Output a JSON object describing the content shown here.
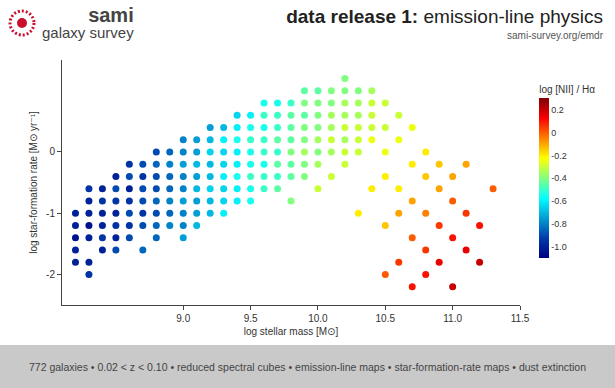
{
  "header": {
    "logo": [
      "sami",
      "galaxy survey"
    ],
    "title": "data release 1: emission-line physics",
    "url": "sami-survey.org/emdr"
  },
  "footer": "772 galaxies • 0.02 < z < 0.10 • reduced spectral cubes • emission-line maps • star-formation-rate maps • dust extinction",
  "chart_data": {
    "type": "scatter",
    "xlabel": "log stellar mass [M⊙]",
    "ylabel": "log star-formation rate [M⊙ yr⁻¹]",
    "grid": false,
    "marker": "circle",
    "xlim": [
      8.1,
      11.5
    ],
    "xticks": [
      {
        "value": 9,
        "label": "9.0"
      },
      9.5,
      {
        "value": 10,
        "label": "10.0"
      },
      10.5,
      {
        "value": 11,
        "label": "11.0"
      },
      11.5
    ],
    "ylim": [
      -2.5,
      1.5
    ],
    "yticks": [
      -2,
      -1,
      0
    ],
    "colorbar_title": "log [NII] / Hα",
    "clim": [
      -1.1,
      0.3
    ],
    "cticks": [
      0.2,
      0,
      -0.2,
      -0.4,
      -0.6,
      -0.8,
      {
        "value": -1,
        "label": "-1.0"
      }
    ],
    "x": [
      8.2,
      8.2,
      8.2,
      8.2,
      8.2,
      8.3,
      8.3,
      8.3,
      8.3,
      8.3,
      8.3,
      8.3,
      8.4,
      8.4,
      8.4,
      8.4,
      8.4,
      8.4,
      8.5,
      8.5,
      8.5,
      8.5,
      8.5,
      8.5,
      8.5,
      8.6,
      8.6,
      8.6,
      8.6,
      8.6,
      8.6,
      8.6,
      8.7,
      8.7,
      8.7,
      8.7,
      8.7,
      8.7,
      8.7,
      8.8,
      8.8,
      8.8,
      8.8,
      8.8,
      8.8,
      8.8,
      8.8,
      8.9,
      8.9,
      8.9,
      8.9,
      8.9,
      8.9,
      8.9,
      9,
      9,
      9,
      9,
      9,
      9,
      9,
      9,
      9,
      9.1,
      9.1,
      9.1,
      9.1,
      9.1,
      9.1,
      9.1,
      9.1,
      9.2,
      9.2,
      9.2,
      9.2,
      9.2,
      9.2,
      9.2,
      9.2,
      9.3,
      9.3,
      9.3,
      9.3,
      9.3,
      9.3,
      9.3,
      9.3,
      9.4,
      9.4,
      9.4,
      9.4,
      9.4,
      9.4,
      9.4,
      9.4,
      9.5,
      9.5,
      9.5,
      9.5,
      9.5,
      9.5,
      9.5,
      9.5,
      9.6,
      9.6,
      9.6,
      9.6,
      9.6,
      9.6,
      9.6,
      9.6,
      9.7,
      9.7,
      9.7,
      9.7,
      9.7,
      9.7,
      9.7,
      9.7,
      9.8,
      9.8,
      9.8,
      9.8,
      9.8,
      9.8,
      9.8,
      9.8,
      9.9,
      9.9,
      9.9,
      9.9,
      9.9,
      9.9,
      9.9,
      9.9,
      10,
      10,
      10,
      10,
      10,
      10,
      10,
      10,
      10.1,
      10.1,
      10.1,
      10.1,
      10.1,
      10.1,
      10.1,
      10.2,
      10.2,
      10.2,
      10.2,
      10.2,
      10.2,
      10.2,
      10.2,
      10.3,
      10.3,
      10.3,
      10.3,
      10.3,
      10.3,
      10.3,
      10.4,
      10.4,
      10.4,
      10.4,
      10.4,
      10.4,
      10.5,
      10.5,
      10.5,
      10.5,
      10.5,
      10.5,
      10.6,
      10.6,
      10.6,
      10.6,
      10.6,
      10.7,
      10.7,
      10.7,
      10.7,
      10.7,
      10.8,
      10.8,
      10.8,
      10.8,
      10.8,
      10.9,
      10.9,
      10.9,
      10.9,
      11,
      11,
      11,
      11,
      11.1,
      11.1,
      11.1,
      11.2,
      11.2,
      11.3
    ],
    "y": [
      -1.8,
      -1.6,
      -1.4,
      -1.2,
      -1.0,
      -2.0,
      -1.8,
      -1.4,
      -1.2,
      -1.0,
      -0.8,
      -0.6,
      -1.6,
      -1.4,
      -1.2,
      -1.0,
      -0.8,
      -0.6,
      -1.6,
      -1.4,
      -1.2,
      -1.0,
      -0.8,
      -0.6,
      -0.4,
      -1.4,
      -1.2,
      -1.0,
      -0.8,
      -0.6,
      -0.4,
      -0.2,
      -1.6,
      -1.2,
      -1.0,
      -0.8,
      -0.6,
      -0.4,
      -0.2,
      -1.4,
      -1.2,
      -1.0,
      -0.8,
      -0.6,
      -0.4,
      -0.2,
      0.0,
      -1.2,
      -1.0,
      -0.8,
      -0.6,
      -0.4,
      -0.2,
      0.0,
      -1.4,
      -1.2,
      -1.0,
      -0.8,
      -0.6,
      -0.4,
      -0.2,
      0.0,
      0.2,
      -1.2,
      -1.0,
      -0.8,
      -0.6,
      -0.4,
      -0.2,
      0.0,
      0.2,
      -1.0,
      -0.8,
      -0.6,
      -0.4,
      -0.2,
      0.0,
      0.2,
      0.4,
      -1.0,
      -0.8,
      -0.6,
      -0.4,
      -0.2,
      0.0,
      0.2,
      0.4,
      -0.8,
      -0.6,
      -0.4,
      -0.2,
      0.0,
      0.2,
      0.4,
      0.6,
      -0.8,
      -0.6,
      -0.4,
      -0.2,
      0.0,
      0.2,
      0.4,
      0.6,
      -0.6,
      -0.4,
      -0.2,
      0.0,
      0.2,
      0.4,
      0.6,
      0.8,
      -0.6,
      -0.4,
      -0.2,
      0.0,
      0.2,
      0.4,
      0.6,
      0.8,
      -0.8,
      -0.4,
      -0.2,
      0.0,
      0.2,
      0.4,
      0.6,
      0.8,
      -0.4,
      -0.2,
      0.0,
      0.2,
      0.4,
      0.6,
      0.8,
      1.0,
      -0.6,
      -0.2,
      0.0,
      0.2,
      0.4,
      0.6,
      0.8,
      1.0,
      -0.4,
      0.0,
      0.2,
      0.4,
      0.6,
      0.8,
      1.0,
      -0.2,
      0.0,
      0.2,
      0.4,
      0.6,
      0.8,
      1.0,
      1.2,
      -1.0,
      0.0,
      0.2,
      0.4,
      0.6,
      0.8,
      1.0,
      -0.6,
      0.2,
      0.4,
      0.6,
      0.8,
      1.0,
      -2.0,
      -1.2,
      -0.4,
      0.0,
      0.4,
      0.8,
      -1.8,
      -1.0,
      -0.6,
      0.2,
      0.6,
      -2.2,
      -1.4,
      -0.8,
      -0.2,
      0.4,
      -2.0,
      -1.6,
      -1.0,
      -0.4,
      0.0,
      -1.8,
      -1.2,
      -0.6,
      -0.2,
      -2.2,
      -1.4,
      -0.8,
      -0.4,
      -1.6,
      -1.0,
      -0.2,
      -1.8,
      -1.2,
      -0.6
    ],
    "values": [
      -1.0,
      -1.0,
      -1.05,
      -1.0,
      -1.0,
      -0.95,
      -1.0,
      -1.0,
      -1.05,
      -1.0,
      -1.0,
      -0.95,
      -1.0,
      -0.95,
      -1.0,
      -1.0,
      -0.95,
      -1.0,
      -0.9,
      -1.0,
      -0.95,
      -1.0,
      -0.95,
      -0.9,
      -1.0,
      -0.9,
      -0.95,
      -0.9,
      -0.95,
      -1.0,
      -0.9,
      -0.95,
      -0.85,
      -0.9,
      -0.95,
      -0.9,
      -0.9,
      -0.95,
      -0.9,
      -0.85,
      -0.85,
      -0.9,
      -0.85,
      -0.9,
      -0.9,
      -0.85,
      -0.9,
      -0.8,
      -0.85,
      -0.8,
      -0.85,
      -0.85,
      -0.8,
      -0.85,
      -0.75,
      -0.8,
      -0.8,
      -0.75,
      -0.8,
      -0.8,
      -0.75,
      -0.8,
      -0.8,
      -0.7,
      -0.75,
      -0.75,
      -0.7,
      -0.75,
      -0.7,
      -0.75,
      -0.75,
      -0.7,
      -0.7,
      -0.65,
      -0.7,
      -0.7,
      -0.65,
      -0.7,
      -0.75,
      -0.6,
      -0.65,
      -0.65,
      -0.6,
      -0.65,
      -0.65,
      -0.6,
      -0.7,
      -0.6,
      -0.6,
      -0.55,
      -0.6,
      -0.6,
      -0.55,
      -0.6,
      -0.65,
      -0.55,
      -0.55,
      -0.5,
      -0.55,
      -0.55,
      -0.5,
      -0.55,
      -0.6,
      -0.5,
      -0.5,
      -0.55,
      -0.5,
      -0.5,
      -0.55,
      -0.5,
      -0.55,
      -0.45,
      -0.5,
      -0.45,
      -0.5,
      -0.45,
      -0.5,
      -0.5,
      -0.55,
      -0.4,
      -0.45,
      -0.45,
      -0.4,
      -0.45,
      -0.45,
      -0.45,
      -0.5,
      -0.4,
      -0.4,
      -0.35,
      -0.4,
      -0.4,
      -0.45,
      -0.4,
      -0.45,
      -0.3,
      -0.35,
      -0.4,
      -0.35,
      -0.4,
      -0.4,
      -0.4,
      -0.45,
      -0.3,
      -0.35,
      -0.3,
      -0.35,
      -0.35,
      -0.4,
      -0.4,
      -0.3,
      -0.3,
      -0.35,
      -0.3,
      -0.35,
      -0.35,
      -0.4,
      -0.4,
      -0.2,
      -0.3,
      -0.3,
      -0.3,
      -0.35,
      -0.35,
      -0.4,
      -0.2,
      -0.25,
      -0.3,
      -0.3,
      -0.3,
      -0.35,
      0.0,
      -0.15,
      -0.2,
      -0.25,
      -0.3,
      -0.3,
      0.05,
      -0.1,
      -0.2,
      -0.25,
      -0.3,
      0.1,
      0.0,
      -0.1,
      -0.2,
      -0.25,
      0.1,
      0.05,
      -0.05,
      -0.15,
      -0.2,
      0.15,
      0.05,
      -0.1,
      -0.15,
      0.2,
      0.1,
      0.0,
      -0.1,
      0.15,
      0.05,
      -0.1,
      0.2,
      0.1,
      0.0
    ]
  }
}
